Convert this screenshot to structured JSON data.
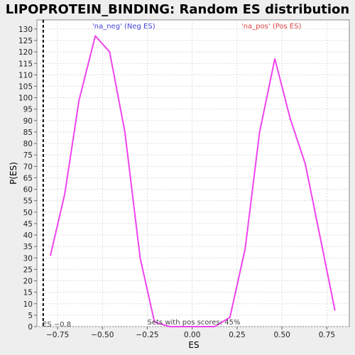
{
  "chart_data": {
    "type": "line",
    "title": "LIPOPROTEIN_BINDING: Random ES distribution",
    "xlabel": "ES",
    "ylabel": "P(ES)",
    "xlim": [
      -0.865,
      0.875
    ],
    "ylim": [
      0,
      134
    ],
    "x_ticks": [
      -0.75,
      -0.5,
      -0.25,
      0.0,
      0.25,
      0.5,
      0.75
    ],
    "x_tick_labels": [
      "−0.75",
      "−0.50",
      "−0.25",
      "0.00",
      "0.25",
      "0.50",
      "0.75"
    ],
    "y_ticks": [
      0,
      5,
      10,
      15,
      20,
      25,
      30,
      35,
      40,
      45,
      50,
      55,
      60,
      65,
      70,
      75,
      80,
      85,
      90,
      95,
      100,
      105,
      110,
      115,
      120,
      125,
      130
    ],
    "grid": true,
    "line_color": "#ee44ee",
    "series": [
      {
        "x": [
          -0.79,
          -0.71,
          -0.63,
          -0.54,
          -0.46,
          -0.375,
          -0.29,
          -0.21,
          -0.125,
          -0.04,
          0.04,
          0.125,
          0.21,
          0.295,
          0.375,
          0.46,
          0.545,
          0.63,
          0.71,
          0.795
        ],
        "y": [
          31,
          58,
          99,
          127,
          120,
          85,
          30,
          2,
          0,
          0,
          0,
          0,
          4,
          34,
          85,
          117,
          91,
          71,
          40,
          7
        ]
      }
    ],
    "es_line": {
      "x": -0.83,
      "label": "ES −0.8",
      "color": "#000000"
    },
    "annotations": {
      "neg": {
        "text": "'na_neg' (Neg ES)",
        "color": "#4444dd"
      },
      "pos": {
        "text": "'na_pos' (Pos ES)",
        "color": "#dd4444"
      },
      "pos_scores": {
        "text": "Sets with pos scores: 45%",
        "color": "#444444"
      }
    }
  }
}
